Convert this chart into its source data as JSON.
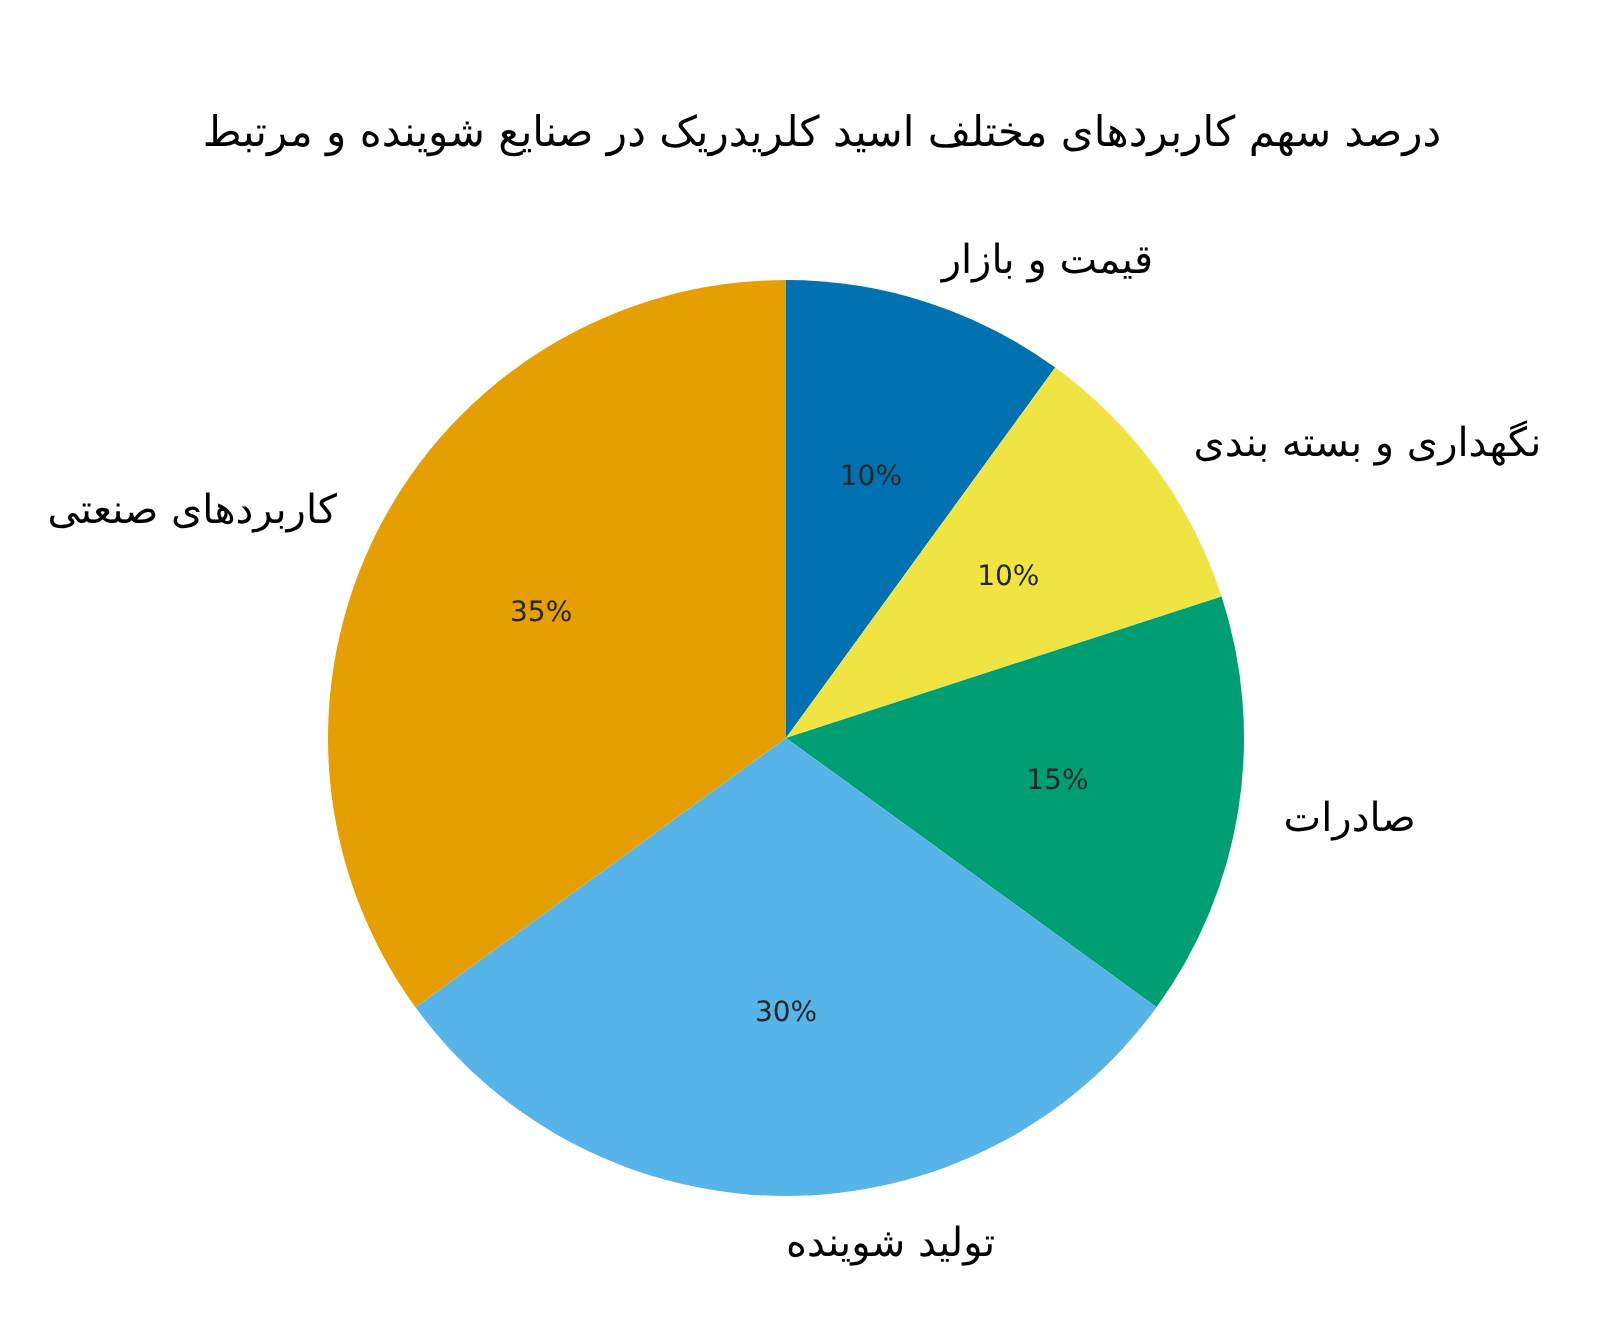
{
  "chart_data": {
    "type": "pie",
    "title": "درصد سهم کاربردهای مختلف اسید کلریدریک در صنایع شوینده و مرتبط",
    "categories": [
      "قیمت و بازار",
      "نگهداری و بسته بندی",
      "صادرات",
      "تولید شوینده",
      "کاربردهای صنعتی"
    ],
    "values": [
      10,
      10,
      15,
      30,
      35
    ],
    "colors": [
      "#0072b2",
      "#f0e442",
      "#009e73",
      "#56b4e9",
      "#e69f00"
    ],
    "value_labels": [
      "10%",
      "10%",
      "15%",
      "30%",
      "35%"
    ]
  }
}
